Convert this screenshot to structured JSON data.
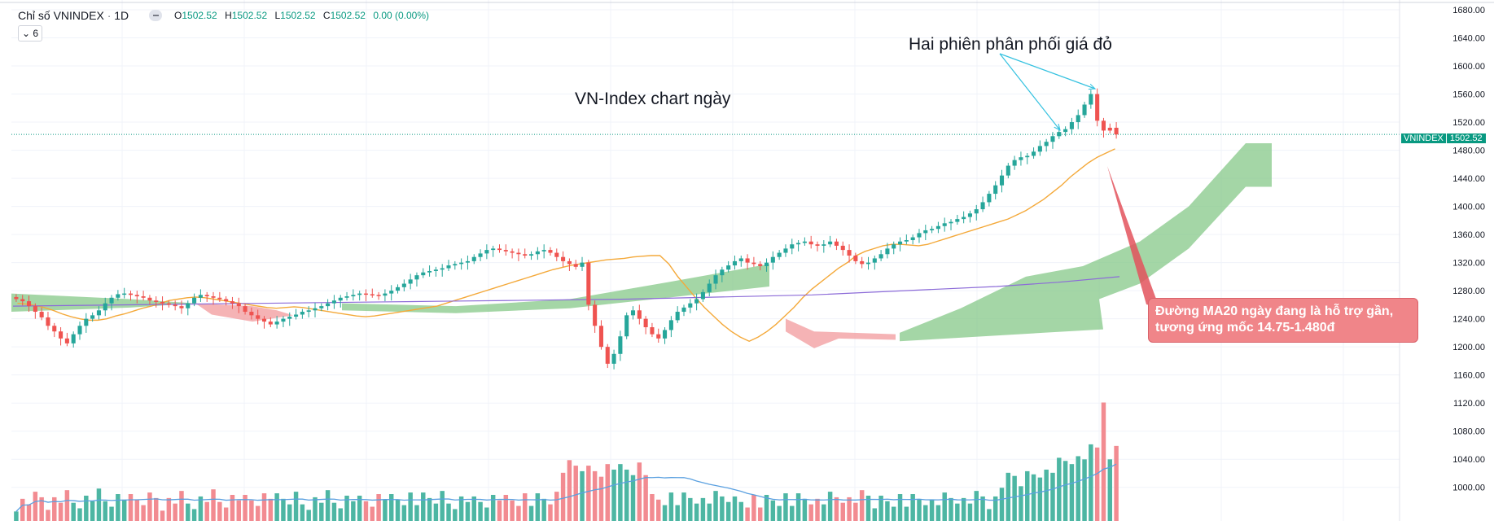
{
  "header": {
    "symbol_title": "Chỉ số VNINDEX",
    "separator": "·",
    "interval": "1D",
    "open_label": "O",
    "open": "1502.52",
    "high_label": "H",
    "high": "1502.52",
    "low_label": "L",
    "low": "1502.52",
    "close_label": "C",
    "close": "1502.52",
    "change": "0.00 (0.00%)",
    "indicator_count": "6"
  },
  "annotations": {
    "chart_title": "VN-Index chart ngày",
    "red_sessions": "Hai phiên phân phối giá đỏ",
    "ma20_note": "Đường MA20 ngày đang là hỗ trợ gần, tương ứng mốc 14.75-1.480đ"
  },
  "price_tag": {
    "symbol": "VNINDEX",
    "value": "1502.52"
  },
  "colors": {
    "up": "#26a69a",
    "down": "#ef5350",
    "vol_up": "#4db6a3",
    "vol_down": "#f28b91",
    "ma20": "#f4a93a",
    "ma200": "#8c6bd8",
    "vol_ma": "#5aa0e0",
    "cloud_bull": "#86c888",
    "cloud_bear": "#f2999c",
    "callout": "#f08589",
    "arrow": "#36c2e0",
    "pointer": "#e3525c",
    "grid": "#f0f3fa",
    "axis_text": "#131722"
  },
  "chart_data": {
    "type": "candlestick",
    "title": "VN-Index chart ngày",
    "xlabel": "",
    "ylabel": "",
    "ylim": [
      980,
      1680
    ],
    "y_ticks": [
      "1680.00",
      "1640.00",
      "1600.00",
      "1560.00",
      "1520.00",
      "1480.00",
      "1440.00",
      "1400.00",
      "1360.00",
      "1320.00",
      "1280.00",
      "1240.00",
      "1200.00",
      "1160.00",
      "1120.00",
      "1080.00",
      "1040.00",
      "1000.00"
    ],
    "last_price": 1502.52,
    "close_series": [
      1268,
      1265,
      1258,
      1250,
      1242,
      1230,
      1222,
      1212,
      1205,
      1218,
      1230,
      1240,
      1245,
      1252,
      1262,
      1270,
      1275,
      1276,
      1274,
      1272,
      1270,
      1266,
      1264,
      1262,
      1260,
      1258,
      1255,
      1262,
      1270,
      1274,
      1272,
      1270,
      1268,
      1265,
      1262,
      1258,
      1250,
      1245,
      1240,
      1236,
      1232,
      1236,
      1240,
      1243,
      1246,
      1250,
      1252,
      1255,
      1258,
      1262,
      1266,
      1270,
      1272,
      1274,
      1276,
      1275,
      1274,
      1273,
      1276,
      1280,
      1285,
      1290,
      1296,
      1302,
      1306,
      1308,
      1310,
      1312,
      1316,
      1318,
      1320,
      1322,
      1328,
      1333,
      1338,
      1340,
      1338,
      1336,
      1334,
      1332,
      1330,
      1332,
      1336,
      1338,
      1334,
      1328,
      1322,
      1318,
      1314,
      1320,
      1260,
      1230,
      1200,
      1176,
      1190,
      1215,
      1245,
      1252,
      1240,
      1228,
      1218,
      1212,
      1224,
      1238,
      1250,
      1256,
      1262,
      1268,
      1278,
      1290,
      1302,
      1310,
      1316,
      1322,
      1326,
      1320,
      1318,
      1315,
      1320,
      1328,
      1334,
      1340,
      1346,
      1348,
      1350,
      1346,
      1344,
      1346,
      1350,
      1344,
      1338,
      1330,
      1322,
      1318,
      1320,
      1326,
      1332,
      1340,
      1346,
      1350,
      1352,
      1356,
      1362,
      1366,
      1368,
      1372,
      1376,
      1378,
      1382,
      1385,
      1390,
      1396,
      1406,
      1418,
      1430,
      1444,
      1458,
      1466,
      1470,
      1472,
      1478,
      1486,
      1492,
      1500,
      1506,
      1510,
      1520,
      1530,
      1545,
      1560,
      1522,
      1508,
      1512,
      1502.52
    ],
    "red_candles_at_end": 2,
    "series": [
      {
        "name": "MA20",
        "values": [
          1262,
          1261,
          1259,
          1256,
          1252,
          1247,
          1243,
          1240,
          1238,
          1238,
          1240,
          1244,
          1247,
          1251,
          1255,
          1258,
          1262,
          1266,
          1268,
          1270,
          1271,
          1270,
          1268,
          1266,
          1264,
          1262,
          1260,
          1258,
          1256,
          1255,
          1256,
          1257,
          1256,
          1254,
          1252,
          1250,
          1248,
          1246,
          1244,
          1243,
          1244,
          1246,
          1248,
          1250,
          1252,
          1254,
          1256,
          1258,
          1262,
          1266,
          1270,
          1274,
          1278,
          1282,
          1286,
          1290,
          1294,
          1298,
          1302,
          1306,
          1310,
          1313,
          1316,
          1318,
          1320,
          1322,
          1324,
          1325,
          1326,
          1328,
          1329,
          1330,
          1330,
          1318,
          1300,
          1285,
          1270,
          1256,
          1244,
          1232,
          1222,
          1214,
          1208,
          1214,
          1222,
          1232,
          1244,
          1256,
          1270,
          1282,
          1292,
          1302,
          1312,
          1320,
          1330,
          1336,
          1340,
          1344,
          1346,
          1346,
          1345,
          1344,
          1346,
          1350,
          1354,
          1358,
          1362,
          1366,
          1370,
          1374,
          1378,
          1382,
          1388,
          1394,
          1402,
          1410,
          1420,
          1430,
          1442,
          1452,
          1462,
          1470,
          1476,
          1482
        ]
      },
      {
        "name": "MA200",
        "values": [
          1258,
          1259,
          1260,
          1261,
          1262,
          1263,
          1264,
          1265,
          1266,
          1267,
          1268,
          1270,
          1272,
          1274,
          1278,
          1282,
          1286,
          1292,
          1300
        ]
      },
      {
        "name": "Ichimoku Cloud (Kumo)",
        "description": "green bullish cloud widening to the right; red bearish patches mid-chart"
      }
    ],
    "volume": {
      "description": "colored volume bars at bottom with blue moving-average line; largest spike near the last red sessions"
    }
  }
}
